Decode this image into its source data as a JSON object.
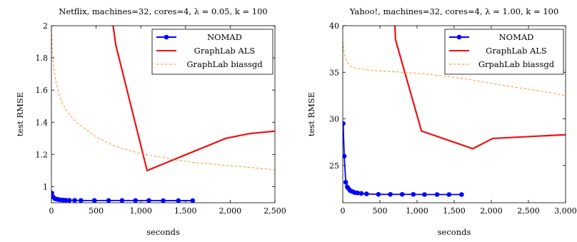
{
  "chart_data": [
    {
      "type": "line",
      "title": "Netflix, machines=32, cores=4, λ = 0.05, k = 100",
      "xlabel": "seconds",
      "ylabel": "test RMSE",
      "xlim": [
        0,
        2500
      ],
      "ylim": [
        0.9,
        2.0
      ],
      "xticks": [
        0,
        500,
        1000,
        1500,
        2000,
        2500
      ],
      "xtick_labels": [
        "0",
        "500",
        "1,000",
        "1,500",
        "2,000",
        "2,500"
      ],
      "yticks": [
        1.0,
        1.2,
        1.4,
        1.6,
        1.8,
        2.0
      ],
      "ytick_labels": [
        "1",
        "1.2",
        "1.4",
        "1.6",
        "1.8",
        "2"
      ],
      "grid": false,
      "legend_position": "top-right",
      "series": [
        {
          "name": "NOMAD",
          "color": "#0000ff",
          "style": "solid-markers",
          "x": [
            5,
            20,
            40,
            60,
            80,
            100,
            130,
            160,
            200,
            260,
            330,
            480,
            640,
            790,
            940,
            1090,
            1250,
            1420,
            1580
          ],
          "y": [
            0.96,
            0.935,
            0.925,
            0.922,
            0.92,
            0.918,
            0.917,
            0.916,
            0.915,
            0.915,
            0.914,
            0.914,
            0.914,
            0.914,
            0.914,
            0.914,
            0.913,
            0.913,
            0.913
          ]
        },
        {
          "name": "GraphLab ALS",
          "color": "#ee1111",
          "style": "solid",
          "x": [
            590,
            720,
            1070,
            1950,
            2220,
            2500
          ],
          "y": [
            2.4,
            1.88,
            1.1,
            1.3,
            1.33,
            1.345
          ]
        },
        {
          "name": "GraphLab biassgd",
          "color": "#ff8c1a",
          "style": "dashed",
          "x": [
            0,
            10,
            25,
            50,
            80,
            120,
            170,
            230,
            300,
            400,
            500,
            600,
            700,
            800,
            900,
            1000,
            1200,
            1400,
            1600,
            1800,
            2000,
            2200,
            2400,
            2500
          ],
          "y": [
            2.0,
            1.85,
            1.75,
            1.65,
            1.58,
            1.52,
            1.47,
            1.43,
            1.39,
            1.35,
            1.31,
            1.28,
            1.255,
            1.235,
            1.22,
            1.205,
            1.185,
            1.165,
            1.15,
            1.14,
            1.13,
            1.12,
            1.11,
            1.105
          ]
        }
      ]
    },
    {
      "type": "line",
      "title": "Yahoo!, machines=32, cores=4, λ = 1.00, k = 100",
      "xlabel": "seconds",
      "ylabel": "test RMSE",
      "xlim": [
        0,
        3000
      ],
      "ylim": [
        21,
        40
      ],
      "xticks": [
        0,
        500,
        1000,
        1500,
        2000,
        2500,
        3000
      ],
      "xtick_labels": [
        "0",
        "500",
        "1,000",
        "1,500",
        "2,000",
        "2,500",
        "3,000"
      ],
      "yticks": [
        25,
        30,
        35,
        40
      ],
      "ytick_labels": [
        "25",
        "30",
        "35",
        "40"
      ],
      "grid": false,
      "legend_position": "top-right",
      "series": [
        {
          "name": "NOMAD",
          "color": "#0000ff",
          "style": "solid-markers",
          "x": [
            5,
            20,
            40,
            60,
            80,
            100,
            130,
            160,
            200,
            250,
            320,
            480,
            640,
            800,
            950,
            1100,
            1270,
            1430,
            1600
          ],
          "y": [
            29.5,
            26.0,
            23.2,
            22.7,
            22.5,
            22.3,
            22.2,
            22.1,
            22.05,
            22.0,
            21.95,
            21.9,
            21.9,
            21.9,
            21.9,
            21.88,
            21.88,
            21.88,
            21.88
          ]
        },
        {
          "name": "GraphLab ALS",
          "color": "#ee1111",
          "style": "solid",
          "x": [
            680,
            710,
            1060,
            1750,
            2020,
            3000
          ],
          "y": [
            44,
            38.5,
            28.7,
            26.8,
            27.9,
            28.3
          ]
        },
        {
          "name": "GrpahLab biassgd",
          "color": "#ff8c1a",
          "style": "dashed",
          "x": [
            0,
            20,
            50,
            100,
            150,
            200,
            300,
            400,
            600,
            800,
            1000,
            1200,
            1400,
            1600,
            1800,
            2000,
            2200,
            2400,
            2600,
            2800,
            3000
          ],
          "y": [
            38.3,
            37.0,
            36.2,
            35.7,
            35.5,
            35.4,
            35.3,
            35.2,
            35.1,
            35.0,
            34.9,
            34.75,
            34.55,
            34.35,
            34.1,
            33.8,
            33.55,
            33.3,
            33.05,
            32.8,
            32.5
          ]
        }
      ]
    }
  ]
}
